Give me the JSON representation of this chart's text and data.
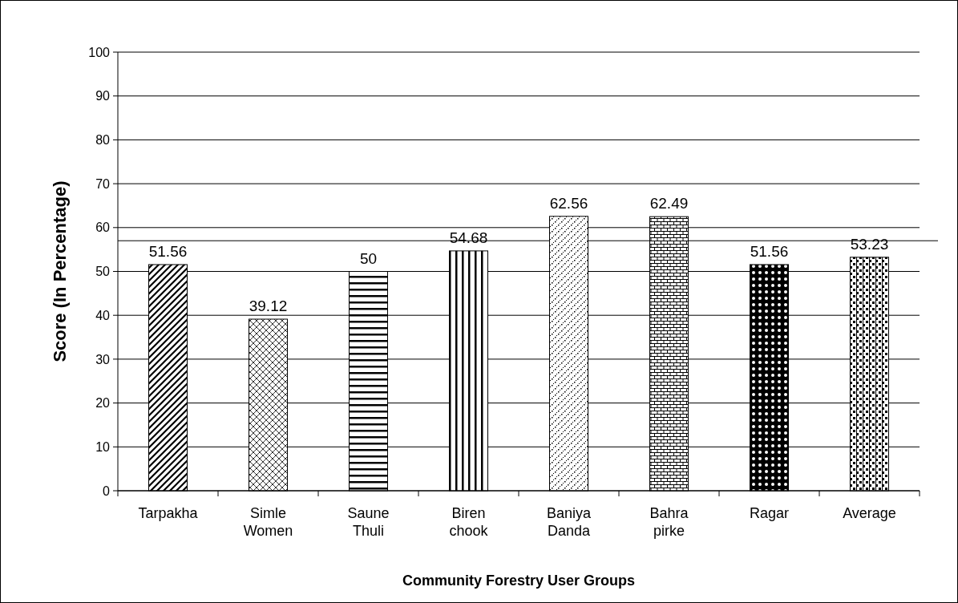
{
  "chart_data": {
    "type": "bar",
    "xlabel": "Community Forestry User Groups",
    "ylabel": "Score (In Percentage)",
    "categories": [
      "Tarpakha",
      "Simle Women",
      "Saune Thuli",
      "Biren chook",
      "Baniya Danda",
      "Bahra pirke",
      "Ragar",
      "Average"
    ],
    "values": [
      51.56,
      39.12,
      50,
      54.68,
      62.56,
      62.49,
      51.56,
      53.23
    ],
    "color": "#000000",
    "ylim": [
      0,
      100
    ],
    "yticks": [
      0,
      10,
      20,
      30,
      40,
      50,
      60,
      70,
      80,
      90,
      100
    ],
    "grid": "y",
    "data_labels": true,
    "ref_lines": [
      {
        "axis": "y",
        "value": 57,
        "color": "#000000"
      }
    ]
  }
}
